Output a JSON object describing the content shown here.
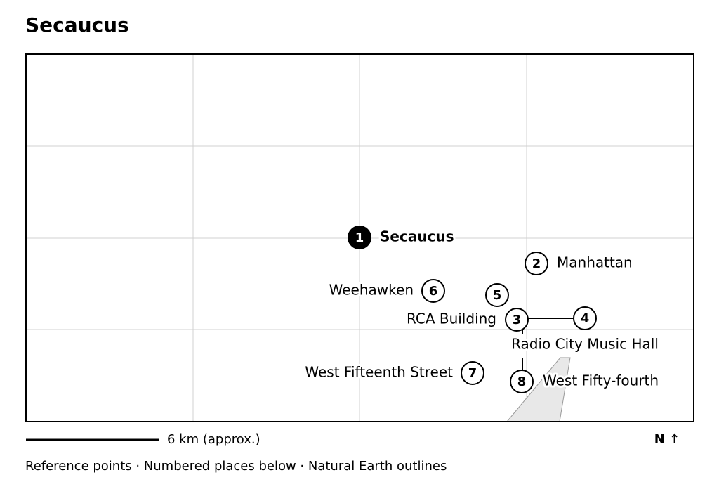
{
  "header": {
    "title": "Secaucus"
  },
  "places": [
    {
      "number": "1",
      "name": "Secaucus"
    },
    {
      "number": "2",
      "name": "Manhattan"
    },
    {
      "number": "3",
      "name": "RCA Building"
    },
    {
      "number": "4",
      "name": "Radio City Music Hall"
    },
    {
      "number": "5"
    },
    {
      "number": "6",
      "name": "Weehawken"
    },
    {
      "number": "7",
      "name": "West Fifteenth Street"
    },
    {
      "number": "8",
      "name": "West Fifty-fourth"
    }
  ],
  "scale": "6 km (approx.)",
  "north": "N ↑",
  "caption": "Reference points · Numbered places below · Natural Earth outlines"
}
